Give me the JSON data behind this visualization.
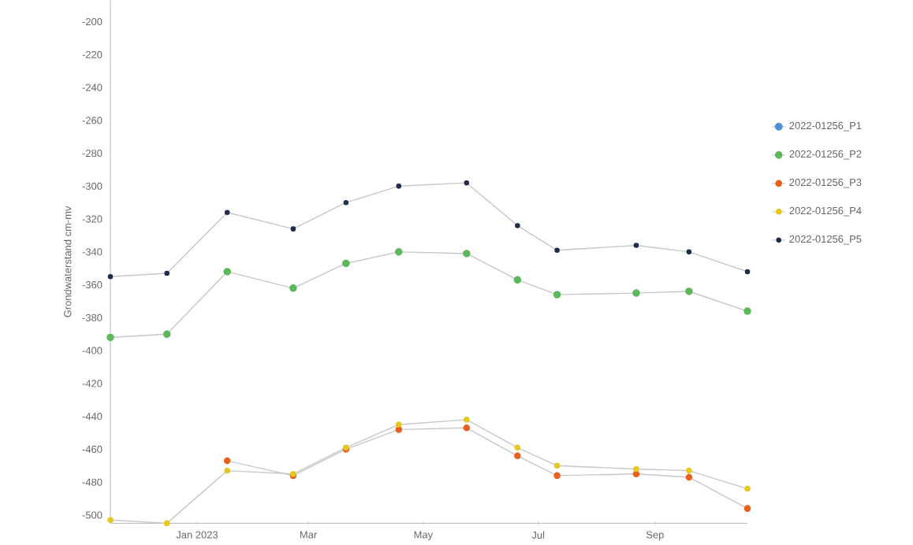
{
  "chart_data": {
    "type": "line",
    "ylabel": "Grondwaterstand cm-mv",
    "x": [
      "2022-11-16",
      "2022-12-16",
      "2023-01-17",
      "2023-02-21",
      "2023-03-21",
      "2023-04-18",
      "2023-05-24",
      "2023-06-20",
      "2023-07-11",
      "2023-08-22",
      "2023-09-19",
      "2023-10-20"
    ],
    "series": [
      {
        "name": "2022-01256_P1",
        "color": "#4a90d9",
        "values": [
          null,
          null,
          null,
          null,
          null,
          null,
          null,
          null,
          null,
          null,
          null,
          null
        ]
      },
      {
        "name": "2022-01256_P2",
        "color": "#5cb85c",
        "values": [
          -392,
          -390,
          -352,
          -362,
          -347,
          -340,
          -341,
          -357,
          -366,
          -365,
          -364,
          -376
        ]
      },
      {
        "name": "2022-01256_P3",
        "color": "#e8601c",
        "values": [
          null,
          null,
          -467,
          -476,
          -460,
          -448,
          -447,
          -464,
          -476,
          -475,
          -477,
          -496
        ]
      },
      {
        "name": "2022-01256_P4",
        "color": "#e6c81e",
        "values": [
          -503,
          -505,
          -473,
          -475,
          -459,
          -445,
          -442,
          -459,
          -470,
          -472,
          -473,
          -484
        ]
      },
      {
        "name": "2022-01256_P5",
        "color": "#1f2d4d",
        "values": [
          -355,
          -353,
          -316,
          -326,
          -310,
          -300,
          -298,
          -324,
          -339,
          -336,
          -340,
          -352
        ]
      }
    ],
    "xlim": [
      "2022-11-16",
      "2023-10-20"
    ],
    "xticks": [
      {
        "value": "2023-01-01",
        "label": "Jan 2023"
      },
      {
        "value": "2023-03-01",
        "label": "Mar"
      },
      {
        "value": "2023-05-01",
        "label": "May"
      },
      {
        "value": "2023-07-01",
        "label": "Jul"
      },
      {
        "value": "2023-09-01",
        "label": "Sep"
      }
    ],
    "ylim": [
      -505,
      -187
    ],
    "yticks": [
      -500,
      -480,
      -460,
      -440,
      -420,
      -400,
      -380,
      -360,
      -340,
      -320,
      -300,
      -280,
      -260,
      -240,
      -220,
      -200
    ],
    "grid": false,
    "legend": "right",
    "marker": "circle",
    "line_style": "solid"
  }
}
